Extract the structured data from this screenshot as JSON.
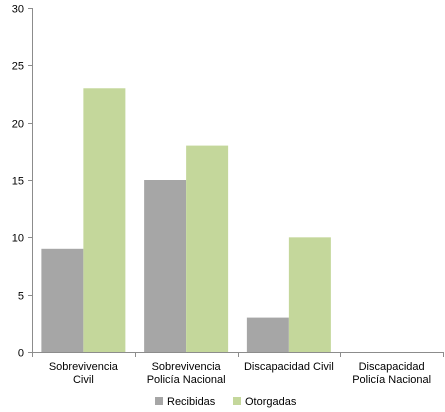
{
  "chart_data": {
    "type": "bar",
    "categories": [
      [
        "Sobrevivencia",
        "Civil"
      ],
      [
        "Sobrevivencia",
        "Policía Nacional"
      ],
      [
        "Discapacidad Civil"
      ],
      [
        "Discapacidad",
        "Policía Nacional"
      ]
    ],
    "series": [
      {
        "name": "Recibidas",
        "color": "#a6a6a6",
        "values": [
          9,
          15,
          3,
          0
        ]
      },
      {
        "name": "Otorgadas",
        "color": "#c4d79b",
        "values": [
          23,
          18,
          10,
          0
        ]
      }
    ],
    "ylim": [
      0,
      30
    ],
    "yticks": [
      "0",
      "5",
      "10",
      "15",
      "20",
      "25",
      "30"
    ],
    "grid": false,
    "legend": "bottom"
  }
}
